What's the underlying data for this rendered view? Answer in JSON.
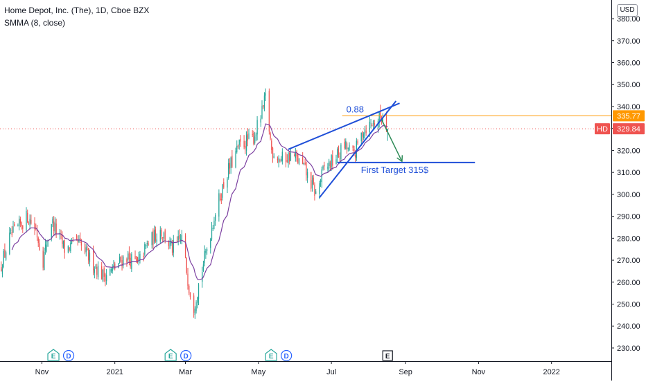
{
  "legend": {
    "title": "Home Depot, Inc. (The), 1D, Cboe BZX",
    "indicator": "SMMA (8, close)"
  },
  "currency": "USD",
  "colors": {
    "up": "#26a69a",
    "down": "#ef5350",
    "smma": "#7b3fa0",
    "pattern": "#1f4fd8",
    "target_arrow": "#2e8b57",
    "level_line": "#ff9800",
    "last_price": "#ef5350"
  },
  "chart_data": {
    "type": "candlestick",
    "symbol": "HD",
    "interval": "1D",
    "y_range": [
      224,
      386
    ],
    "y_ticks": [
      "230.00",
      "240.00",
      "250.00",
      "260.00",
      "270.00",
      "280.00",
      "290.00",
      "300.00",
      "310.00",
      "320.00",
      "330.00",
      "340.00",
      "350.00",
      "360.00",
      "370.00",
      "380.00"
    ],
    "x_range": [
      "2020-09-27",
      "2022-02-20"
    ],
    "x_ticks": [
      {
        "date": "2020-11-01",
        "label": "Nov"
      },
      {
        "date": "2021-01-01",
        "label": "2021"
      },
      {
        "date": "2021-03-01",
        "label": "Mar"
      },
      {
        "date": "2021-05-01",
        "label": "May"
      },
      {
        "date": "2021-07-01",
        "label": "Jul"
      },
      {
        "date": "2021-09-01",
        "label": "Sep"
      },
      {
        "date": "2021-11-01",
        "label": "Nov"
      },
      {
        "date": "2022-01-01",
        "label": "2022"
      }
    ],
    "price_path": [
      {
        "date": "2020-09-27",
        "close": 266
      },
      {
        "date": "2020-10-05",
        "close": 280
      },
      {
        "date": "2020-10-20",
        "close": 290
      },
      {
        "date": "2020-10-27",
        "close": 284
      },
      {
        "date": "2020-11-02",
        "close": 270
      },
      {
        "date": "2020-11-09",
        "close": 288
      },
      {
        "date": "2020-11-20",
        "close": 275
      },
      {
        "date": "2020-12-01",
        "close": 278
      },
      {
        "date": "2020-12-12",
        "close": 270
      },
      {
        "date": "2020-12-22",
        "close": 263
      },
      {
        "date": "2020-12-31",
        "close": 266
      },
      {
        "date": "2021-01-10",
        "close": 272
      },
      {
        "date": "2021-01-20",
        "close": 268
      },
      {
        "date": "2021-01-28",
        "close": 277
      },
      {
        "date": "2021-02-08",
        "close": 284
      },
      {
        "date": "2021-02-18",
        "close": 275
      },
      {
        "date": "2021-02-26",
        "close": 280
      },
      {
        "date": "2021-03-04",
        "close": 258
      },
      {
        "date": "2021-03-08",
        "close": 249
      },
      {
        "date": "2021-03-15",
        "close": 266
      },
      {
        "date": "2021-03-25",
        "close": 290
      },
      {
        "date": "2021-04-05",
        "close": 310
      },
      {
        "date": "2021-04-15",
        "close": 322
      },
      {
        "date": "2021-04-27",
        "close": 326
      },
      {
        "date": "2021-05-04",
        "close": 337
      },
      {
        "date": "2021-05-07",
        "close": 344
      },
      {
        "date": "2021-05-12",
        "close": 320
      },
      {
        "date": "2021-05-20",
        "close": 316
      },
      {
        "date": "2021-05-30",
        "close": 318
      },
      {
        "date": "2021-06-08",
        "close": 312
      },
      {
        "date": "2021-06-18",
        "close": 300
      },
      {
        "date": "2021-06-25",
        "close": 312
      },
      {
        "date": "2021-07-02",
        "close": 315
      },
      {
        "date": "2021-07-12",
        "close": 322
      },
      {
        "date": "2021-07-20",
        "close": 318
      },
      {
        "date": "2021-07-28",
        "close": 330
      },
      {
        "date": "2021-08-06",
        "close": 333
      },
      {
        "date": "2021-08-13",
        "close": 336
      },
      {
        "date": "2021-08-17",
        "close": 329.84
      }
    ],
    "smma_period": 8,
    "earnings_markers": [
      {
        "date": "2020-11-17",
        "labels": [
          "E",
          "D"
        ]
      },
      {
        "date": "2021-02-23",
        "labels": [
          "E",
          "D"
        ]
      },
      {
        "date": "2021-05-18",
        "labels": [
          "E",
          "D"
        ]
      },
      {
        "date": "2021-08-17",
        "labels": [
          "E"
        ]
      }
    ],
    "price_labels": [
      {
        "value": 335.77,
        "text": "335.77",
        "kind": "level"
      },
      {
        "value": 329.84,
        "text": "329.84",
        "symbol": "HD",
        "kind": "last"
      }
    ],
    "annotations": {
      "pattern_upper": [
        {
          "date": "2021-05-26",
          "price": 320.5
        },
        {
          "date": "2021-08-27",
          "price": 341.5
        }
      ],
      "pattern_lower": [
        {
          "date": "2021-06-21",
          "price": 298.5
        },
        {
          "date": "2021-08-24",
          "price": 342.5
        }
      ],
      "level_line": {
        "from": "2021-07-10",
        "to": "2022-02-20",
        "price": 335.77,
        "label": "0.88"
      },
      "target_line": {
        "from": "2021-07-06",
        "to": "2021-10-29",
        "price": 314.5,
        "label": "First Target 315$"
      },
      "target_arrow": [
        {
          "date": "2021-08-12",
          "price": 334
        },
        {
          "date": "2021-08-29",
          "price": 315
        }
      ]
    }
  }
}
